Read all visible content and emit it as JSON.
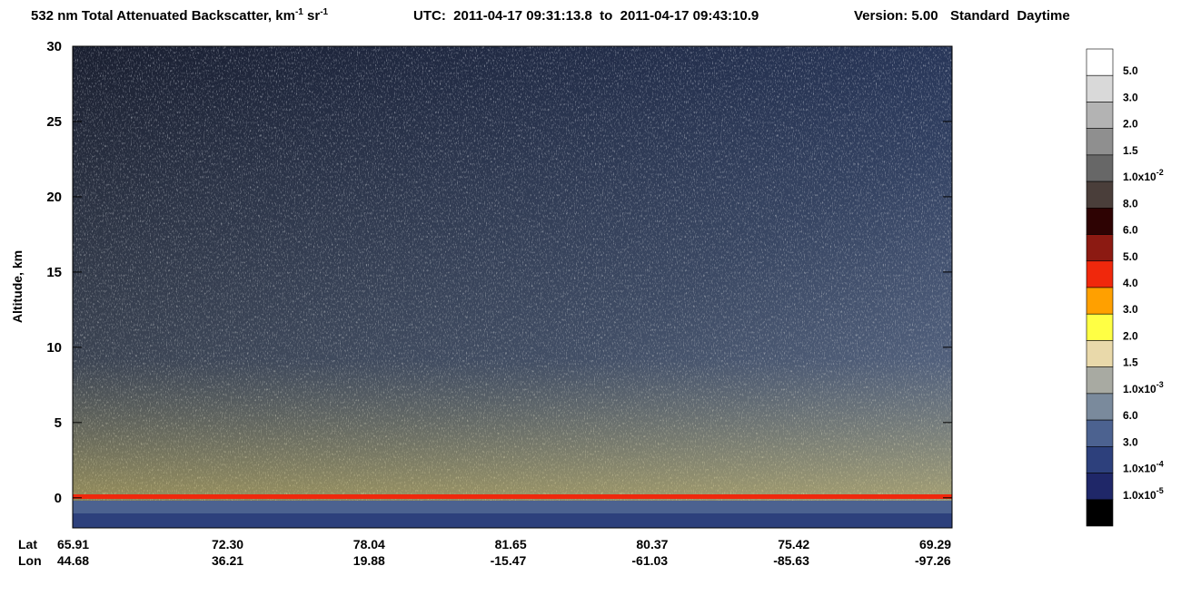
{
  "chart_data": {
    "type": "curtain",
    "title_parts": [
      "532 nm Total Attenuated Backscatter, km",
      "-1",
      " sr",
      "-1"
    ],
    "utc": "UTC:  2011-04-17 09:31:13.8  to  2011-04-17 09:43:10.9",
    "version": "Version: 5.00",
    "product": "Standard  Daytime",
    "ylabel": "Altitude, km",
    "ylim": [
      -2,
      30
    ],
    "yticks": [
      0,
      5,
      10,
      15,
      20,
      25,
      30
    ],
    "x_rows": [
      {
        "name": "Lat",
        "labels": [
          "65.91",
          "72.30",
          "78.04",
          "81.65",
          "80.37",
          "75.42",
          "69.29"
        ]
      },
      {
        "name": "Lon",
        "labels": [
          "44.68",
          "36.21",
          "19.88",
          "-15.47",
          "-61.03",
          "-85.63",
          "-97.26"
        ]
      }
    ],
    "colorbar": {
      "colors": [
        "#ffffff",
        "#d9d9d9",
        "#b3b3b3",
        "#8f8f8f",
        "#676767",
        "#4a3e3a",
        "#2e0303",
        "#8c1a12",
        "#f0280c",
        "#ffa000",
        "#ffff44",
        "#e9d9aa",
        "#a8aaa2",
        "#7a8a9c",
        "#4c6290",
        "#2d407c",
        "#1f2768",
        "#000000"
      ],
      "labels": [
        {
          "label": "5.0"
        },
        {
          "label": "3.0"
        },
        {
          "label": "2.0"
        },
        {
          "label": "1.5"
        },
        {
          "label": "1.0x10",
          "sup": "-2"
        },
        {
          "label": "8.0"
        },
        {
          "label": "6.0"
        },
        {
          "label": "5.0"
        },
        {
          "label": "4.0"
        },
        {
          "label": "3.0"
        },
        {
          "label": "2.0"
        },
        {
          "label": "1.5"
        },
        {
          "label": "1.0x10",
          "sup": "-3"
        },
        {
          "label": "6.0"
        },
        {
          "label": "3.0"
        },
        {
          "label": "1.0x10",
          "sup": "-4"
        },
        {
          "label": "1.0x10",
          "sup": "-5"
        }
      ]
    }
  }
}
